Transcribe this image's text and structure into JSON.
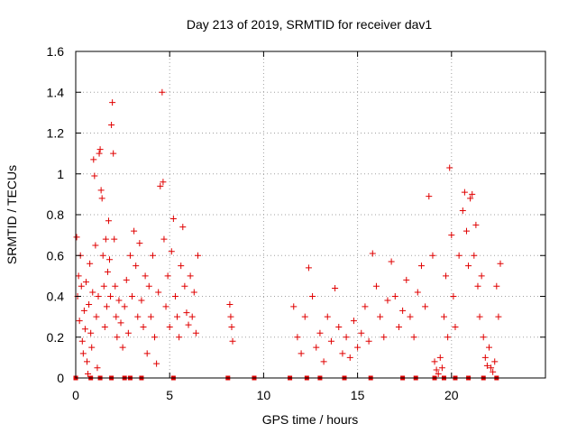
{
  "chart_data": {
    "type": "scatter",
    "title": "Day 213 of 2019, SRMTID for receiver dav1",
    "xlabel": "GPS time / hours",
    "ylabel": "SRMTID / TECUs",
    "xlim": [
      0,
      25
    ],
    "ylim": [
      0,
      1.6
    ],
    "xticks": [
      0,
      5,
      10,
      15,
      20
    ],
    "yticks": [
      0,
      0.2,
      0.4,
      0.6,
      0.8,
      1.0,
      1.2,
      1.4,
      1.6
    ],
    "xtick_labels": [
      "0",
      "5",
      "10",
      "15",
      "20"
    ],
    "ytick_labels": [
      "0",
      "0.2",
      "0.4",
      "0.6",
      "0.8",
      "1",
      "1.2",
      "1.4",
      "1.6"
    ],
    "grid": true,
    "marker": "plus",
    "series": [
      {
        "name": "SRMTID",
        "color": "#e00000",
        "points": [
          [
            0.05,
            0.69
          ],
          [
            0.1,
            0.4
          ],
          [
            0.15,
            0.5
          ],
          [
            0.2,
            0.28
          ],
          [
            0.25,
            0.6
          ],
          [
            0.3,
            0.45
          ],
          [
            0.35,
            0.18
          ],
          [
            0.4,
            0.12
          ],
          [
            0.45,
            0.33
          ],
          [
            0.5,
            0.24
          ],
          [
            0.55,
            0.47
          ],
          [
            0.6,
            0.08
          ],
          [
            0.65,
            0.02
          ],
          [
            0.7,
            0.36
          ],
          [
            0.75,
            0.56
          ],
          [
            0.8,
            0.22
          ],
          [
            0.85,
            0.15
          ],
          [
            0.9,
            0.42
          ],
          [
            0.95,
            1.07
          ],
          [
            1.0,
            0.99
          ],
          [
            1.05,
            0.65
          ],
          [
            1.1,
            0.3
          ],
          [
            1.15,
            0.05
          ],
          [
            1.2,
            0.4
          ],
          [
            1.25,
            1.1
          ],
          [
            1.3,
            1.12
          ],
          [
            1.35,
            0.92
          ],
          [
            1.4,
            0.88
          ],
          [
            1.45,
            0.6
          ],
          [
            1.5,
            0.45
          ],
          [
            1.55,
            0.25
          ],
          [
            1.6,
            0.68
          ],
          [
            1.65,
            0.35
          ],
          [
            1.7,
            0.52
          ],
          [
            1.75,
            0.77
          ],
          [
            1.8,
            0.58
          ],
          [
            1.85,
            0.4
          ],
          [
            1.9,
            1.24
          ],
          [
            1.95,
            1.35
          ],
          [
            2.0,
            1.1
          ],
          [
            2.05,
            0.68
          ],
          [
            2.1,
            0.45
          ],
          [
            2.15,
            0.3
          ],
          [
            2.2,
            0.2
          ],
          [
            2.3,
            0.38
          ],
          [
            2.4,
            0.27
          ],
          [
            2.5,
            0.15
          ],
          [
            2.6,
            0.35
          ],
          [
            2.7,
            0.48
          ],
          [
            2.8,
            0.22
          ],
          [
            2.9,
            0.6
          ],
          [
            3.0,
            0.4
          ],
          [
            3.1,
            0.72
          ],
          [
            3.2,
            0.55
          ],
          [
            3.3,
            0.3
          ],
          [
            3.4,
            0.66
          ],
          [
            3.5,
            0.38
          ],
          [
            3.6,
            0.25
          ],
          [
            3.7,
            0.5
          ],
          [
            3.8,
            0.12
          ],
          [
            3.9,
            0.45
          ],
          [
            4.0,
            0.3
          ],
          [
            4.1,
            0.6
          ],
          [
            4.2,
            0.2
          ],
          [
            4.3,
            0.07
          ],
          [
            4.4,
            0.42
          ],
          [
            4.5,
            0.94
          ],
          [
            4.6,
            1.4
          ],
          [
            4.65,
            0.96
          ],
          [
            4.7,
            0.68
          ],
          [
            4.8,
            0.35
          ],
          [
            4.9,
            0.5
          ],
          [
            5.0,
            0.25
          ],
          [
            5.1,
            0.62
          ],
          [
            5.2,
            0.78
          ],
          [
            5.3,
            0.4
          ],
          [
            5.4,
            0.3
          ],
          [
            5.5,
            0.2
          ],
          [
            5.6,
            0.55
          ],
          [
            5.7,
            0.74
          ],
          [
            5.8,
            0.45
          ],
          [
            5.9,
            0.32
          ],
          [
            6.0,
            0.26
          ],
          [
            6.1,
            0.5
          ],
          [
            6.2,
            0.3
          ],
          [
            6.3,
            0.42
          ],
          [
            6.4,
            0.22
          ],
          [
            6.5,
            0.6
          ],
          [
            8.2,
            0.36
          ],
          [
            8.25,
            0.3
          ],
          [
            8.3,
            0.25
          ],
          [
            8.35,
            0.18
          ],
          [
            11.6,
            0.35
          ],
          [
            11.8,
            0.2
          ],
          [
            12.0,
            0.12
          ],
          [
            12.2,
            0.3
          ],
          [
            12.4,
            0.54
          ],
          [
            12.6,
            0.4
          ],
          [
            12.8,
            0.15
          ],
          [
            13.0,
            0.22
          ],
          [
            13.2,
            0.08
          ],
          [
            13.4,
            0.3
          ],
          [
            13.6,
            0.18
          ],
          [
            13.8,
            0.44
          ],
          [
            14.0,
            0.25
          ],
          [
            14.2,
            0.12
          ],
          [
            14.4,
            0.2
          ],
          [
            14.6,
            0.1
          ],
          [
            14.8,
            0.28
          ],
          [
            15.0,
            0.15
          ],
          [
            15.2,
            0.22
          ],
          [
            15.4,
            0.35
          ],
          [
            15.6,
            0.18
          ],
          [
            15.8,
            0.61
          ],
          [
            16.0,
            0.45
          ],
          [
            16.2,
            0.3
          ],
          [
            16.4,
            0.2
          ],
          [
            16.6,
            0.38
          ],
          [
            16.8,
            0.57
          ],
          [
            17.0,
            0.4
          ],
          [
            17.2,
            0.25
          ],
          [
            17.4,
            0.33
          ],
          [
            17.6,
            0.48
          ],
          [
            17.8,
            0.3
          ],
          [
            18.0,
            0.2
          ],
          [
            18.2,
            0.42
          ],
          [
            18.4,
            0.55
          ],
          [
            18.6,
            0.35
          ],
          [
            18.8,
            0.89
          ],
          [
            19.0,
            0.6
          ],
          [
            19.1,
            0.08
          ],
          [
            19.2,
            0.04
          ],
          [
            19.3,
            0.02
          ],
          [
            19.4,
            0.1
          ],
          [
            19.5,
            0.05
          ],
          [
            19.6,
            0.3
          ],
          [
            19.7,
            0.5
          ],
          [
            19.8,
            0.2
          ],
          [
            19.9,
            1.03
          ],
          [
            20.0,
            0.7
          ],
          [
            20.1,
            0.4
          ],
          [
            20.2,
            0.25
          ],
          [
            20.4,
            0.6
          ],
          [
            20.6,
            0.82
          ],
          [
            20.7,
            0.91
          ],
          [
            20.8,
            0.72
          ],
          [
            20.9,
            0.55
          ],
          [
            21.0,
            0.88
          ],
          [
            21.1,
            0.9
          ],
          [
            21.2,
            0.6
          ],
          [
            21.3,
            0.75
          ],
          [
            21.4,
            0.45
          ],
          [
            21.5,
            0.3
          ],
          [
            21.6,
            0.5
          ],
          [
            21.7,
            0.2
          ],
          [
            21.8,
            0.1
          ],
          [
            21.9,
            0.06
          ],
          [
            22.0,
            0.15
          ],
          [
            22.1,
            0.05
          ],
          [
            22.2,
            0.03
          ],
          [
            22.3,
            0.08
          ],
          [
            22.4,
            0.45
          ],
          [
            22.5,
            0.3
          ],
          [
            22.6,
            0.56
          ]
        ]
      }
    ],
    "zero_markers_x": [
      0,
      0.8,
      1.3,
      1.9,
      2.6,
      2.9,
      3.5,
      5.2,
      8.1,
      9.5,
      11.4,
      12.3,
      13.0,
      14.3,
      15.7,
      17.4,
      18.1,
      19.1,
      19.6,
      20.2,
      20.9,
      21.7,
      22.4
    ]
  }
}
